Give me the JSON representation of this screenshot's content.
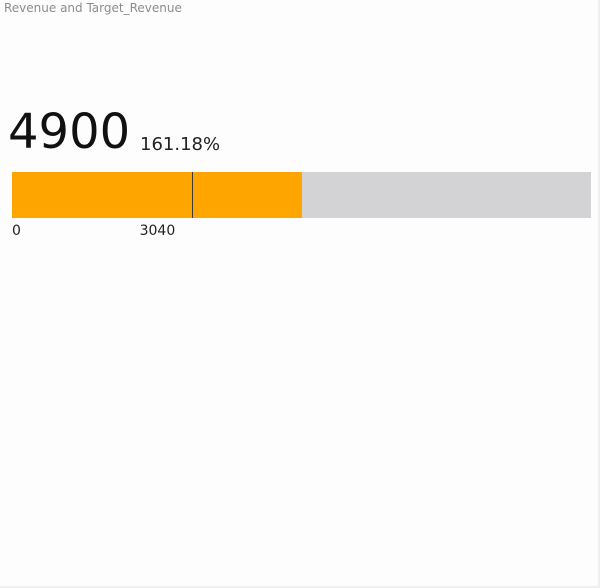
{
  "title": "Revenue and Target_Revenue",
  "chart_data": {
    "type": "bar",
    "kpi_value_label": "4900",
    "percent_label": "161.18%",
    "value": 4900,
    "target": 3040,
    "axis_min": 0,
    "axis_max": 9800,
    "min_label": "0",
    "target_label": "3040"
  },
  "colors": {
    "fill": "#ffa500",
    "track": "#d3d2d4",
    "target_line": "#3a3a3a"
  }
}
